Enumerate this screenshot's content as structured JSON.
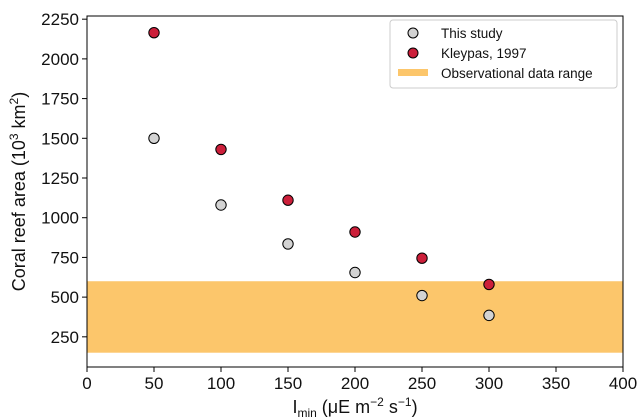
{
  "chart_data": {
    "type": "scatter",
    "xlabel": {
      "base": "I",
      "sub": "min",
      "rest": " (μE m",
      "sup1": "−2",
      "mid": " s",
      "sup2": "−1",
      "end": ")"
    },
    "ylabel": {
      "base": "Coral reef area (10",
      "sup": "3",
      "mid": " km",
      "sup2": "2",
      "end": ")"
    },
    "xlim": [
      0,
      400
    ],
    "ylim": [
      60,
      2270
    ],
    "xticks": [
      0,
      50,
      100,
      150,
      200,
      250,
      300,
      350,
      400
    ],
    "yticks": [
      250,
      500,
      750,
      1000,
      1250,
      1500,
      1750,
      2000,
      2250
    ],
    "grid": false,
    "legend_position": "top-right",
    "band": {
      "name": "Observational data range",
      "y0": 150,
      "y1": 600,
      "color": "#fcc66b"
    },
    "series": [
      {
        "name": "This study",
        "color": "#d3d3d3",
        "x": [
          50,
          100,
          150,
          200,
          250,
          300
        ],
        "y": [
          1500,
          1080,
          835,
          655,
          510,
          385
        ]
      },
      {
        "name": "Kleypas, 1997",
        "color": "#cc1f3a",
        "x": [
          50,
          100,
          150,
          200,
          250,
          300
        ],
        "y": [
          2165,
          1430,
          1110,
          910,
          745,
          580
        ]
      }
    ]
  }
}
